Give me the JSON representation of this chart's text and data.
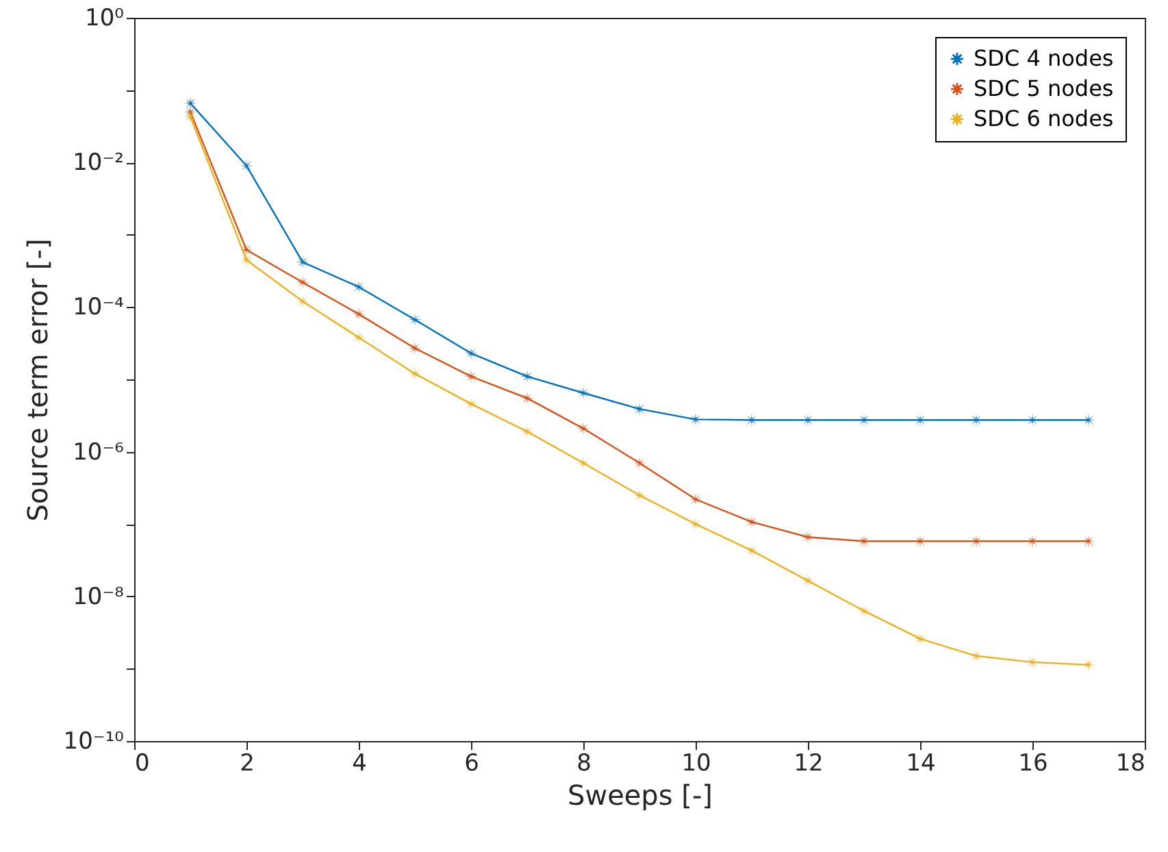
{
  "chart_data": {
    "type": "line",
    "xlabel": "Sweeps [-]",
    "ylabel": "Source term error [-]",
    "x": [
      1,
      2,
      3,
      4,
      5,
      6,
      7,
      8,
      9,
      10,
      11,
      12,
      13,
      14,
      15,
      16,
      17
    ],
    "series": [
      {
        "name": "SDC 4 nodes",
        "color": "#0072bd",
        "values": [
          0.066,
          0.009,
          0.00042,
          0.00019,
          6.7e-05,
          2.3e-05,
          1.1e-05,
          6.5e-06,
          3.9e-06,
          2.8e-06,
          2.75e-06,
          2.75e-06,
          2.75e-06,
          2.75e-06,
          2.75e-06,
          2.75e-06,
          2.75e-06
        ]
      },
      {
        "name": "SDC 5 nodes",
        "color": "#d95319",
        "values": [
          0.05,
          0.00062,
          0.00022,
          8e-05,
          2.7e-05,
          1.1e-05,
          5.5e-06,
          2.1e-06,
          7e-07,
          2.2e-07,
          1.07e-07,
          6.6e-08,
          5.8e-08,
          5.8e-08,
          5.8e-08,
          5.8e-08,
          5.8e-08
        ]
      },
      {
        "name": "SDC 6 nodes",
        "color": "#edb120",
        "values": [
          0.043,
          0.00045,
          0.00012,
          3.8e-05,
          1.2e-05,
          4.6e-06,
          1.9e-06,
          7e-07,
          2.5e-07,
          1e-07,
          4.3e-08,
          1.65e-08,
          6.3e-09,
          2.6e-09,
          1.5e-09,
          1.23e-09,
          1.13e-09
        ]
      }
    ],
    "xlim": [
      0,
      18
    ],
    "xticks": [
      0,
      2,
      4,
      6,
      8,
      10,
      12,
      14,
      16,
      18
    ],
    "log": true,
    "ylim": [
      1e-10,
      1
    ],
    "yticks": [
      {
        "value": 1e-10,
        "label": "10⁻¹⁰"
      },
      {
        "value": 1e-09,
        "label": null
      },
      {
        "value": 1e-08,
        "label": "10⁻⁸"
      },
      {
        "value": 1e-07,
        "label": null
      },
      {
        "value": 1e-06,
        "label": "10⁻⁶"
      },
      {
        "value": 1e-05,
        "label": null
      },
      {
        "value": 0.0001,
        "label": "10⁻⁴"
      },
      {
        "value": 0.001,
        "label": null
      },
      {
        "value": 0.01,
        "label": "10⁻²"
      },
      {
        "value": 0.1,
        "label": null
      },
      {
        "value": 1,
        "label": "10⁰"
      }
    ],
    "legend": "top right",
    "marker": "star",
    "line_style": "solid"
  }
}
